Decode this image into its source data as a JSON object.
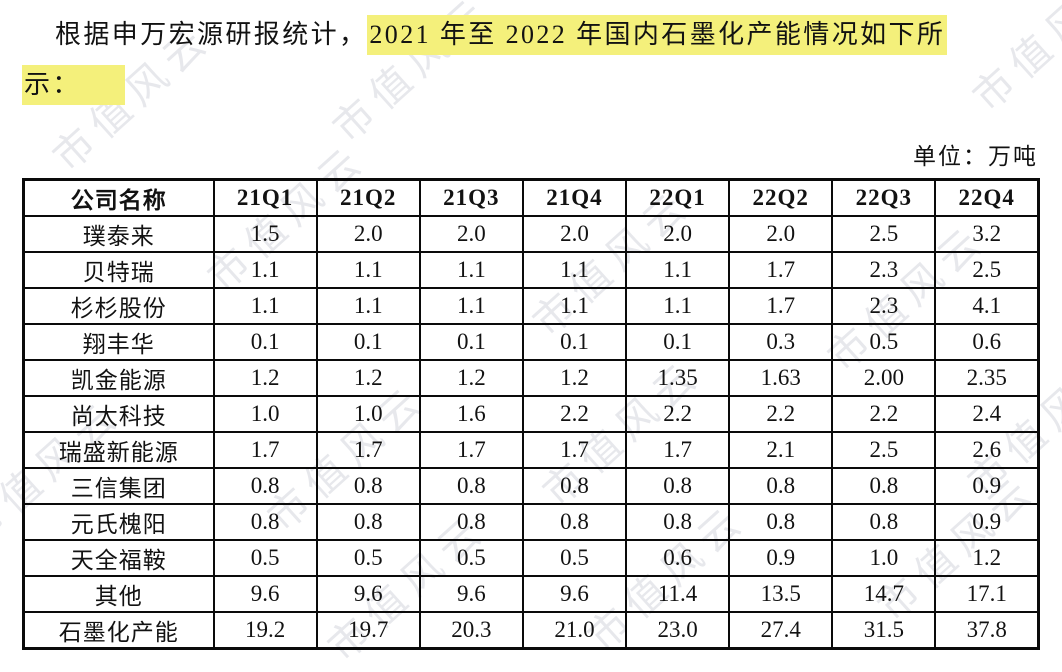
{
  "page": {
    "paragraph": {
      "normal_prefix": "根据申万宏源研报统计，",
      "highlight_part1": "2021 年至 2022 年国内石墨化产能情况如下所",
      "highlight_part2": "示：",
      "highlight_color": "#f4f07b"
    },
    "unit_label": "单位：万吨",
    "watermark_text": "市值风云"
  },
  "table": {
    "headers": [
      "公司名称",
      "21Q1",
      "21Q2",
      "21Q3",
      "21Q4",
      "22Q1",
      "22Q2",
      "22Q3",
      "22Q4"
    ],
    "rows": [
      {
        "company": "璞泰来",
        "values": [
          "1.5",
          "2.0",
          "2.0",
          "2.0",
          "2.0",
          "2.0",
          "2.5",
          "3.2"
        ]
      },
      {
        "company": "贝特瑞",
        "values": [
          "1.1",
          "1.1",
          "1.1",
          "1.1",
          "1.1",
          "1.7",
          "2.3",
          "2.5"
        ]
      },
      {
        "company": "杉杉股份",
        "values": [
          "1.1",
          "1.1",
          "1.1",
          "1.1",
          "1.1",
          "1.7",
          "2.3",
          "4.1"
        ]
      },
      {
        "company": "翔丰华",
        "values": [
          "0.1",
          "0.1",
          "0.1",
          "0.1",
          "0.1",
          "0.3",
          "0.5",
          "0.6"
        ]
      },
      {
        "company": "凯金能源",
        "values": [
          "1.2",
          "1.2",
          "1.2",
          "1.2",
          "1.35",
          "1.63",
          "2.00",
          "2.35"
        ]
      },
      {
        "company": "尚太科技",
        "values": [
          "1.0",
          "1.0",
          "1.6",
          "2.2",
          "2.2",
          "2.2",
          "2.2",
          "2.4"
        ]
      },
      {
        "company": "瑞盛新能源",
        "values": [
          "1.7",
          "1.7",
          "1.7",
          "1.7",
          "1.7",
          "2.1",
          "2.5",
          "2.6"
        ]
      },
      {
        "company": "三信集团",
        "values": [
          "0.8",
          "0.8",
          "0.8",
          "0.8",
          "0.8",
          "0.8",
          "0.8",
          "0.9"
        ]
      },
      {
        "company": "元氏槐阳",
        "values": [
          "0.8",
          "0.8",
          "0.8",
          "0.8",
          "0.8",
          "0.8",
          "0.8",
          "0.9"
        ]
      },
      {
        "company": "天全福鞍",
        "values": [
          "0.5",
          "0.5",
          "0.5",
          "0.5",
          "0.6",
          "0.9",
          "1.0",
          "1.2"
        ]
      },
      {
        "company": "其他",
        "values": [
          "9.6",
          "9.6",
          "9.6",
          "9.6",
          "11.4",
          "13.5",
          "14.7",
          "17.1"
        ]
      },
      {
        "company": "石墨化产能",
        "values": [
          "19.2",
          "19.7",
          "20.3",
          "21.0",
          "23.0",
          "27.4",
          "31.5",
          "37.8"
        ]
      }
    ]
  }
}
